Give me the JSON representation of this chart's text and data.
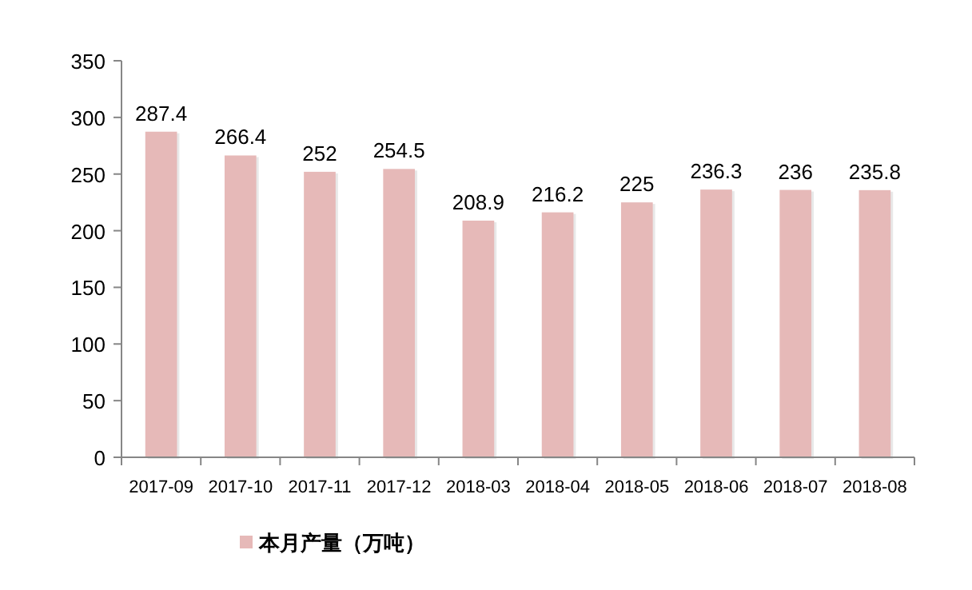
{
  "chart_data": {
    "type": "bar",
    "categories": [
      "2017-09",
      "2017-10",
      "2017-11",
      "2017-12",
      "2018-03",
      "2018-04",
      "2018-05",
      "2018-06",
      "2018-07",
      "2018-08"
    ],
    "series": [
      {
        "name": "本月产量（万吨）",
        "color": "#e6b9b8",
        "values": [
          287.4,
          266.4,
          252,
          254.5,
          208.9,
          216.2,
          225,
          236.3,
          236,
          235.8
        ]
      }
    ],
    "ylim": [
      0,
      350
    ],
    "yticks": [
      0,
      50,
      100,
      150,
      200,
      250,
      300,
      350
    ],
    "data_labels": true,
    "grid": false,
    "legend": "bottom"
  }
}
